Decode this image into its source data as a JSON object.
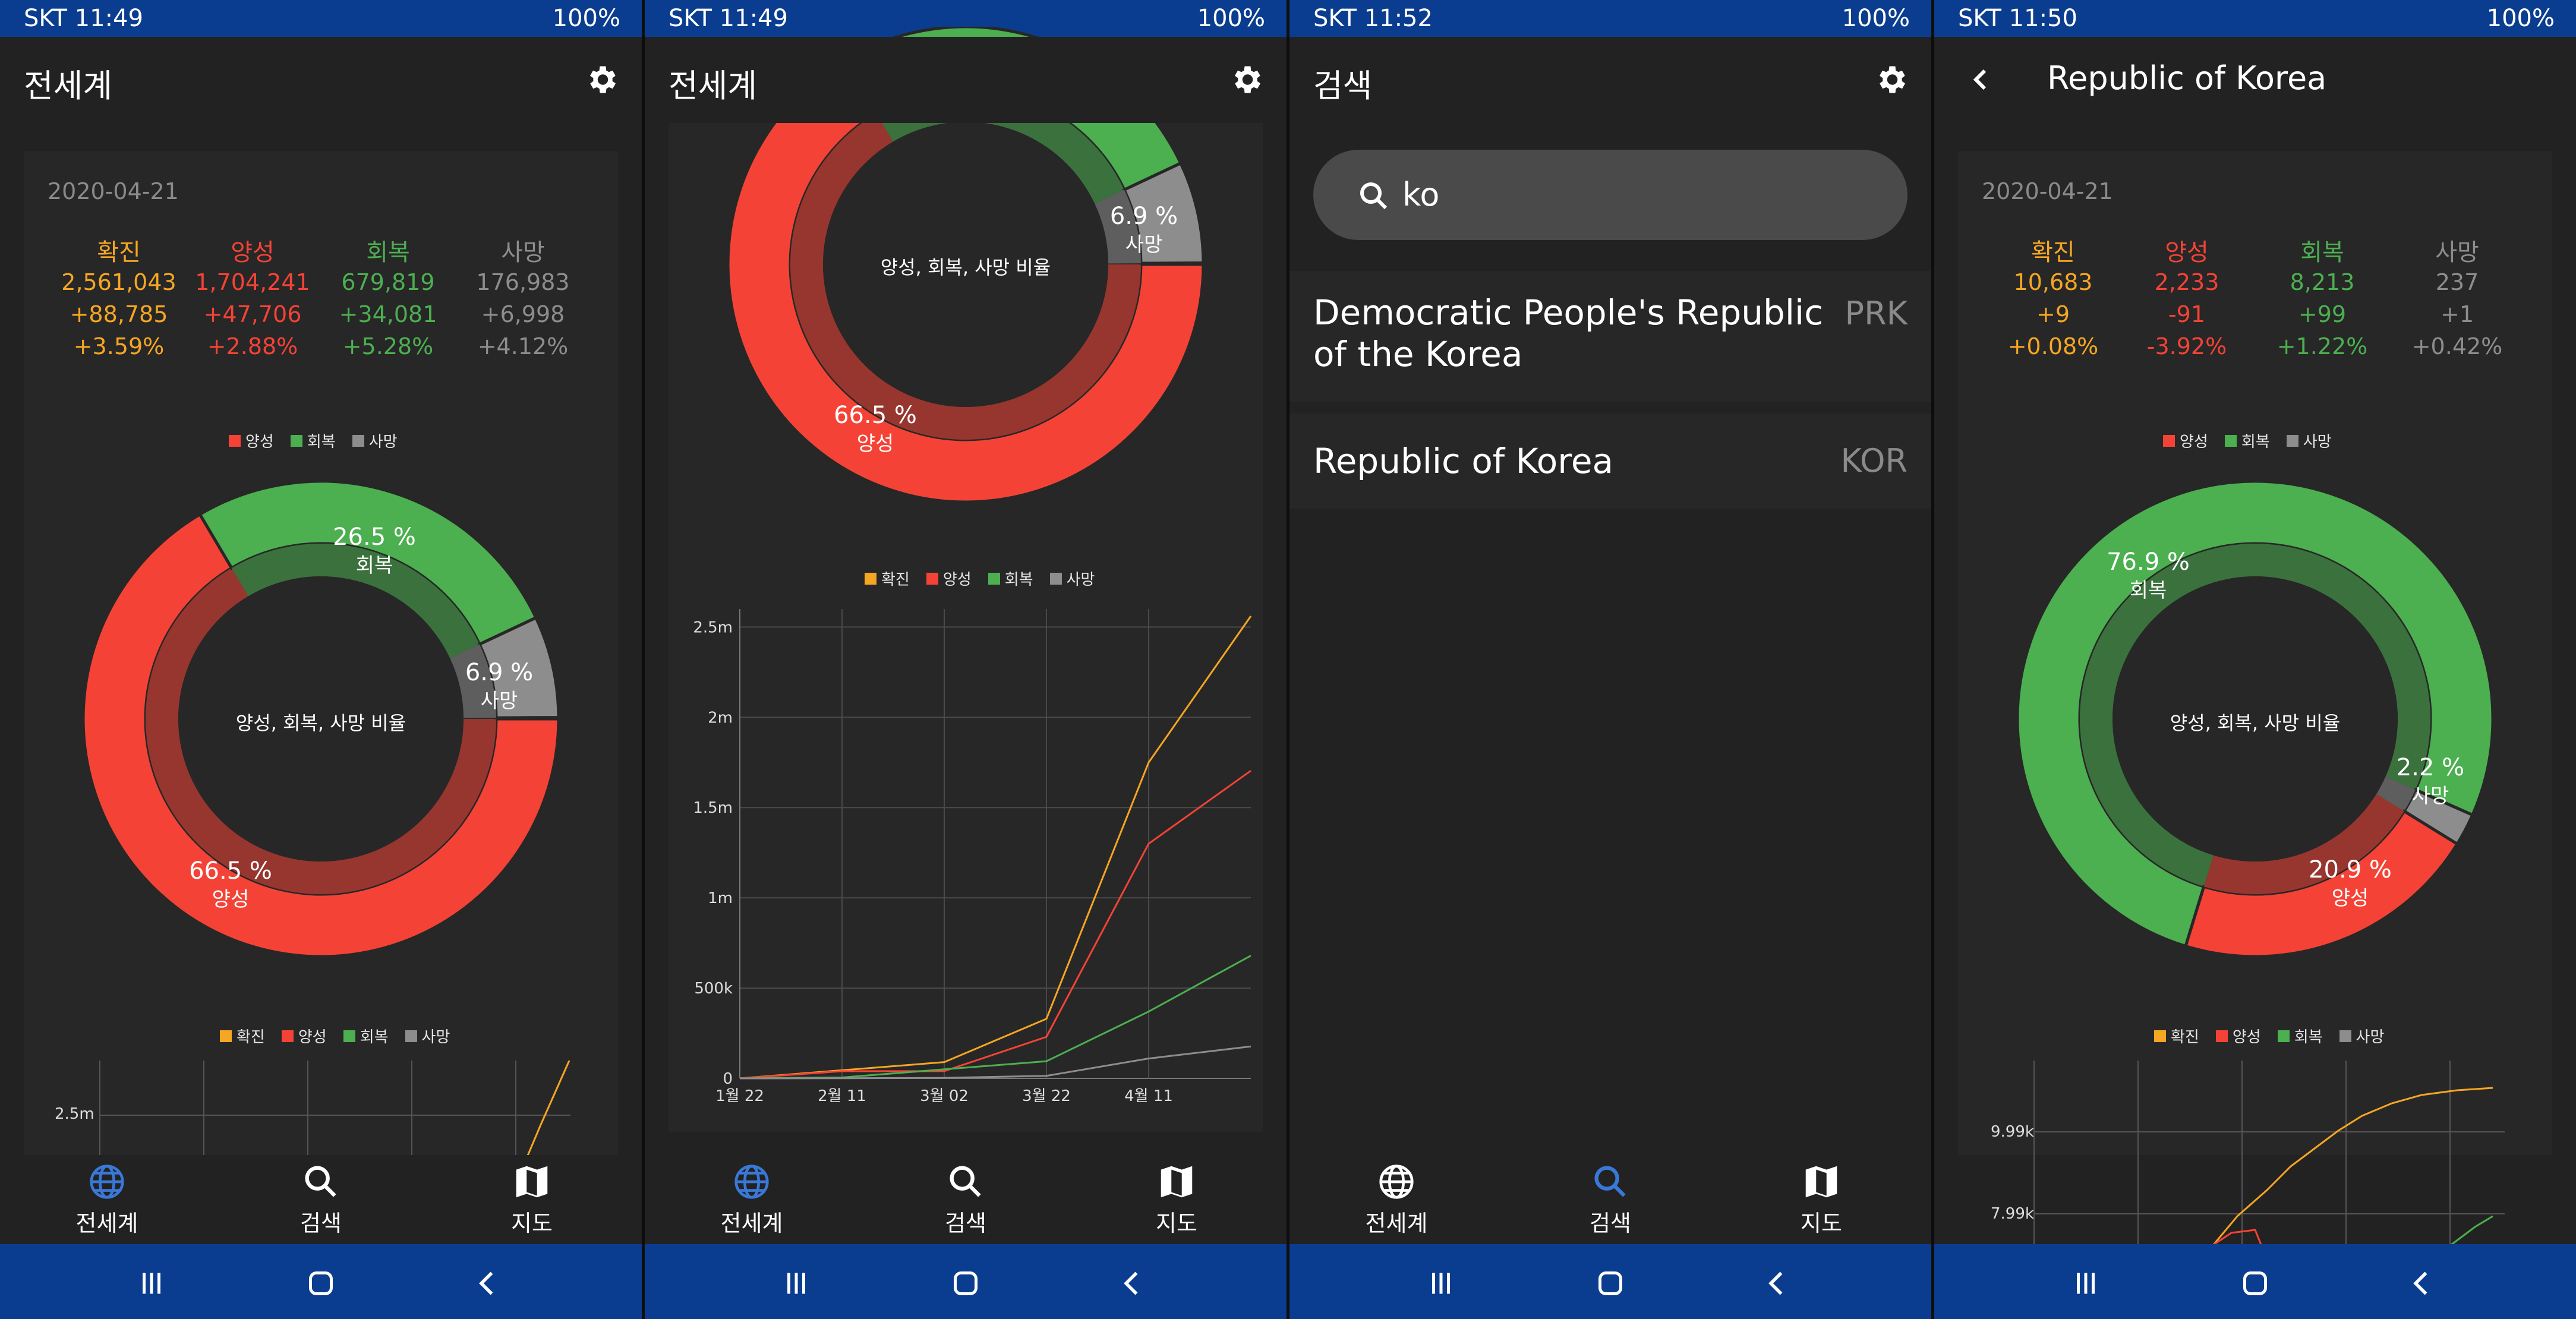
{
  "status": {
    "s1_time": "SKT 11:49",
    "s2_time": "SKT 11:49",
    "s3_time": "SKT 11:52",
    "s4_time": "SKT 11:50",
    "battery": "100%"
  },
  "screen1": {
    "title": "전세계",
    "date": "2020-04-21",
    "headers": [
      "확진",
      "양성",
      "회복",
      "사망"
    ],
    "confirmed": [
      "2,561,043",
      "+88,785",
      "+3.59%"
    ],
    "positive": [
      "1,704,241",
      "+47,706",
      "+2.88%"
    ],
    "recovered": [
      "679,819",
      "+34,081",
      "+5.28%"
    ],
    "death": [
      "176,983",
      "+6,998",
      "+4.12%"
    ],
    "legend": [
      "양성",
      "회복",
      "사망"
    ],
    "center_label": "양성, 회복, 사망 비율",
    "slices": [
      {
        "label": "양성",
        "pct_text": "66.5 %",
        "value": 66.5
      },
      {
        "label": "회복",
        "pct_text": "26.5 %",
        "value": 26.5
      },
      {
        "label": "사망",
        "pct_text": "6.9 %",
        "value": 6.9
      }
    ],
    "line_legend": [
      "확진",
      "양성",
      "회복",
      "사망"
    ],
    "y_tick": "2.5m"
  },
  "screen2": {
    "title": "전세계",
    "center_label": "양성, 회복, 사망 비율",
    "slices": [
      {
        "label": "양성",
        "pct_text": "66.5 %",
        "value": 66.5
      },
      {
        "label": "사망",
        "pct_text": "6.9 %",
        "value": 6.9
      }
    ],
    "line_legend": [
      "확진",
      "양성",
      "회복",
      "사망"
    ],
    "y_ticks": [
      "2.5m",
      "2m",
      "1.5m",
      "1m",
      "500k",
      "0"
    ],
    "x_ticks": [
      "1월 22",
      "2월 11",
      "3월 02",
      "3월 22",
      "4월 11"
    ]
  },
  "screen3": {
    "title": "검색",
    "search_value": "ko",
    "results": [
      {
        "name": "Democratic People's Republic of the Korea",
        "code": "PRK"
      },
      {
        "name": "Republic of Korea",
        "code": "KOR"
      }
    ]
  },
  "screen4": {
    "title": "Republic of Korea",
    "date": "2020-04-21",
    "headers": [
      "확진",
      "양성",
      "회복",
      "사망"
    ],
    "confirmed": [
      "10,683",
      "+9",
      "+0.08%"
    ],
    "positive": [
      "2,233",
      "-91",
      "-3.92%"
    ],
    "recovered": [
      "8,213",
      "+99",
      "+1.22%"
    ],
    "death": [
      "237",
      "+1",
      "+0.42%"
    ],
    "legend": [
      "양성",
      "회복",
      "사망"
    ],
    "center_label": "양성, 회복, 사망 비율",
    "slices": [
      {
        "label": "회복",
        "pct_text": "76.9 %",
        "value": 76.9
      },
      {
        "label": "사망",
        "pct_text": "2.2 %",
        "value": 2.2
      },
      {
        "label": "양성",
        "pct_text": "20.9 %",
        "value": 20.9
      }
    ],
    "line_legend": [
      "확진",
      "양성",
      "회복",
      "사망"
    ],
    "y_ticks": [
      "9.99k",
      "7.99k"
    ]
  },
  "nav": {
    "world": "전세계",
    "search": "검색",
    "map": "지도"
  },
  "colors": {
    "confirmed": "#f5a623",
    "positive": "#f44336",
    "recovered": "#4caf50",
    "death": "#8d8d8d",
    "accent": "#3a78d8",
    "bar": "#0a3d8f"
  },
  "chart_data": [
    {
      "type": "pie",
      "title": "양성, 회복, 사망 비율",
      "categories": [
        "양성",
        "회복",
        "사망"
      ],
      "values": [
        66.5,
        26.5,
        6.9
      ]
    },
    {
      "type": "line",
      "x": [
        "1월 22",
        "2월 11",
        "3월 02",
        "3월 22",
        "4월 11",
        "4월 21"
      ],
      "ylim": [
        0,
        2600000
      ],
      "series": [
        {
          "name": "확진",
          "values": [
            0,
            45000,
            90000,
            330000,
            1750000,
            2561043
          ]
        },
        {
          "name": "양성",
          "values": [
            0,
            40000,
            40000,
            230000,
            1300000,
            1704241
          ]
        },
        {
          "name": "회복",
          "values": [
            0,
            5000,
            50000,
            95000,
            370000,
            679819
          ]
        },
        {
          "name": "사망",
          "values": [
            0,
            1000,
            3000,
            14000,
            110000,
            176983
          ]
        }
      ]
    },
    {
      "type": "pie",
      "title": "양성, 회복, 사망 비율",
      "categories": [
        "회복",
        "사망",
        "양성"
      ],
      "values": [
        76.9,
        2.2,
        20.9
      ]
    }
  ]
}
